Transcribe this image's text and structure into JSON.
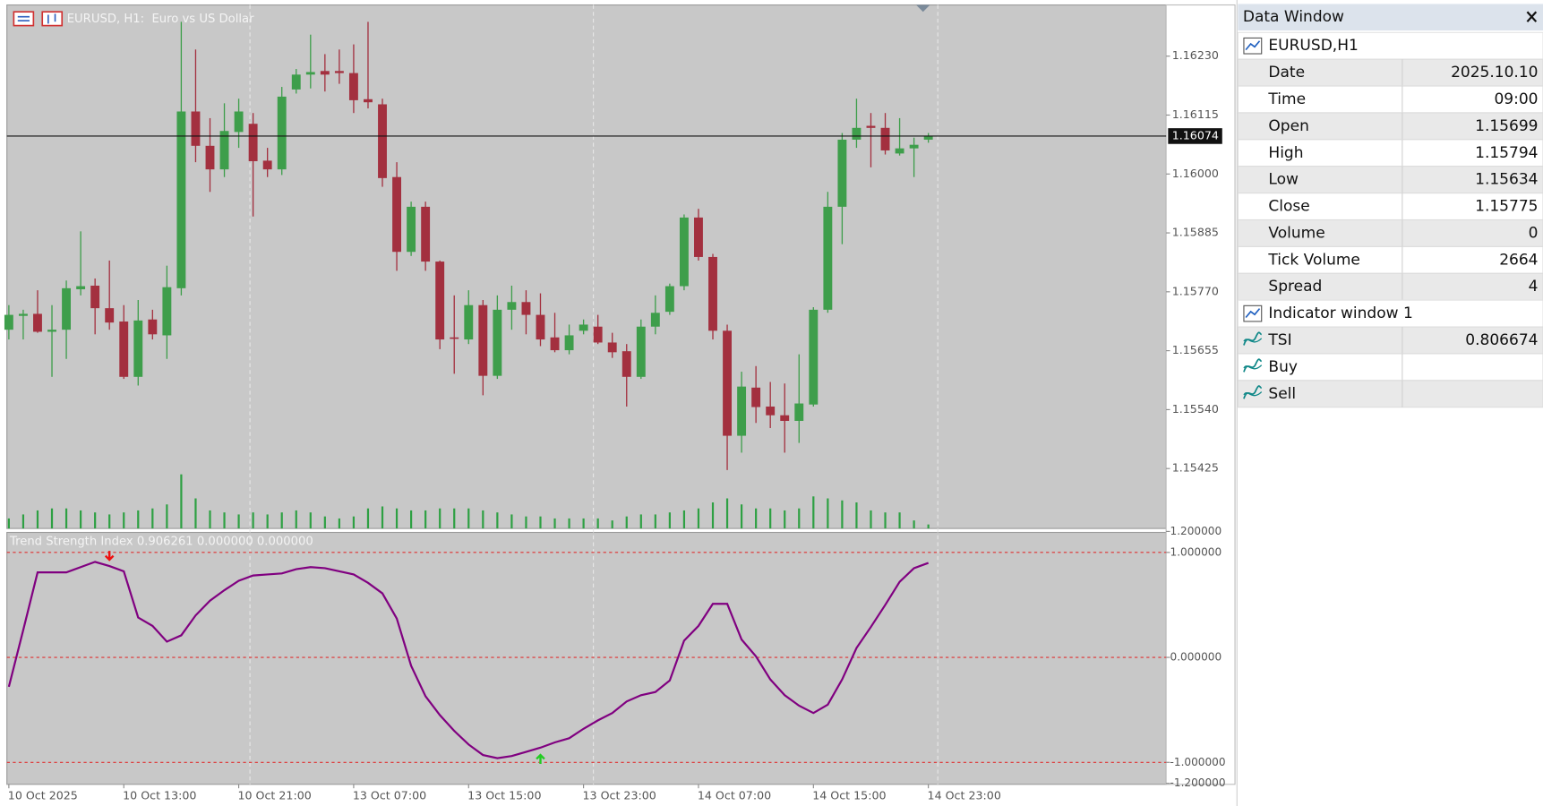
{
  "header": {
    "symbol_title": "EURUSD, H1:  Euro vs US Dollar"
  },
  "chart_data": [
    {
      "type": "candlestick",
      "categories": [
        "10 Oct 2025",
        null,
        null,
        null,
        null,
        null,
        null,
        null,
        "10 Oct 13:00",
        null,
        null,
        null,
        null,
        null,
        null,
        null,
        "10 Oct 21:00",
        null,
        null,
        null,
        null,
        null,
        null,
        null,
        "13 Oct 07:00",
        null,
        null,
        null,
        null,
        null,
        null,
        null,
        "13 Oct 15:00",
        null,
        null,
        null,
        null,
        null,
        null,
        null,
        "13 Oct 23:00",
        null,
        null,
        null,
        null,
        null,
        null,
        null,
        "14 Oct 07:00",
        null,
        null,
        null,
        null,
        null,
        null,
        null,
        "14 Oct 15:00",
        null,
        null,
        null,
        null,
        null,
        null,
        null,
        "14 Oct 23:00"
      ],
      "open": [
        1.15696,
        1.15723,
        1.15727,
        1.15692,
        1.15696,
        1.15775,
        1.15782,
        1.15738,
        1.15712,
        1.15604,
        1.15716,
        1.15685,
        1.15777,
        1.16122,
        1.16055,
        1.16009,
        1.16082,
        1.16098,
        1.16026,
        1.16009,
        1.16165,
        1.16194,
        1.16201,
        1.16201,
        1.16197,
        1.16146,
        1.16136,
        1.15994,
        1.15848,
        1.15936,
        1.15829,
        1.15681,
        1.15677,
        1.15744,
        1.15606,
        1.15735,
        1.1575,
        1.15725,
        1.15681,
        1.15656,
        1.15694,
        1.15702,
        1.15671,
        1.15654,
        1.15604,
        1.15702,
        1.15731,
        1.15781,
        1.15915,
        1.15838,
        1.15694,
        1.15489,
        1.15583,
        1.15546,
        1.15529,
        1.15518,
        1.1555,
        1.15735,
        1.15936,
        1.16067,
        1.16094,
        1.1609,
        1.1604,
        1.1605,
        1.16067
      ],
      "high": [
        1.15744,
        1.15735,
        1.15773,
        1.15744,
        1.15792,
        1.15888,
        1.15796,
        1.15831,
        1.15744,
        1.15754,
        1.15735,
        1.15821,
        1.16297,
        1.16243,
        1.16109,
        1.16138,
        1.16147,
        1.16119,
        1.16051,
        1.1617,
        1.16205,
        1.16272,
        1.16234,
        1.16243,
        1.16253,
        1.16297,
        1.16147,
        1.16023,
        1.15946,
        1.15946,
        1.15831,
        1.15763,
        1.15773,
        1.15754,
        1.15763,
        1.15782,
        1.15773,
        1.15767,
        1.15729,
        1.15706,
        1.15716,
        1.15725,
        1.1569,
        1.15668,
        1.15716,
        1.15763,
        1.15786,
        1.15921,
        1.15932,
        1.15844,
        1.15706,
        1.15614,
        1.15625,
        1.15594,
        1.15591,
        1.15648,
        1.1574,
        1.15965,
        1.1608,
        1.16147,
        1.16119,
        1.16119,
        1.16109,
        1.16071,
        1.1608
      ],
      "low": [
        1.15677,
        1.15677,
        1.1569,
        1.15604,
        1.15639,
        1.15763,
        1.15687,
        1.15696,
        1.156,
        1.15587,
        1.15677,
        1.15639,
        1.15763,
        1.16023,
        1.15965,
        1.15994,
        1.16051,
        1.15917,
        1.15994,
        1.15998,
        1.16157,
        1.16167,
        1.16161,
        1.16176,
        1.16119,
        1.16128,
        1.15975,
        1.15811,
        1.1584,
        1.15811,
        1.15658,
        1.1561,
        1.15668,
        1.15568,
        1.156,
        1.15696,
        1.15687,
        1.15664,
        1.15652,
        1.15648,
        1.15687,
        1.15668,
        1.15641,
        1.15546,
        1.156,
        1.15687,
        1.15725,
        1.15773,
        1.15831,
        1.15677,
        1.15422,
        1.15456,
        1.15514,
        1.15504,
        1.15456,
        1.15475,
        1.15546,
        1.15729,
        1.15863,
        1.16051,
        1.16013,
        1.16038,
        1.16036,
        1.15994,
        1.16061
      ],
      "close": [
        1.15725,
        1.15727,
        1.15692,
        1.15696,
        1.15777,
        1.15781,
        1.15738,
        1.1571,
        1.15604,
        1.15714,
        1.15687,
        1.15779,
        1.16122,
        1.16055,
        1.16009,
        1.16084,
        1.16122,
        1.16025,
        1.16009,
        1.16151,
        1.16194,
        1.16199,
        1.16194,
        1.16197,
        1.16144,
        1.1614,
        1.15992,
        1.15848,
        1.15936,
        1.15829,
        1.15677,
        1.15679,
        1.15744,
        1.15606,
        1.15735,
        1.1575,
        1.15725,
        1.15677,
        1.15656,
        1.15685,
        1.15706,
        1.15671,
        1.15652,
        1.15604,
        1.15702,
        1.15729,
        1.15781,
        1.15915,
        1.15838,
        1.15694,
        1.15489,
        1.15585,
        1.15545,
        1.15529,
        1.15518,
        1.15552,
        1.15735,
        1.15936,
        1.16067,
        1.1609,
        1.1609,
        1.16046,
        1.1605,
        1.16057,
        1.16074
      ],
      "volumes": [
        1000,
        1400,
        1800,
        2000,
        2000,
        1800,
        1600,
        1400,
        1600,
        1800,
        2000,
        2400,
        5400,
        3000,
        1800,
        1600,
        1400,
        1600,
        1400,
        1600,
        1800,
        1600,
        1200,
        1000,
        1200,
        2000,
        2200,
        2000,
        1800,
        1800,
        2000,
        2000,
        2000,
        1800,
        1600,
        1400,
        1200,
        1200,
        1000,
        1000,
        1000,
        1000,
        800,
        1200,
        1400,
        1400,
        1600,
        1800,
        2000,
        2600,
        3000,
        2400,
        2000,
        2000,
        1800,
        2000,
        3200,
        3000,
        2800,
        2600,
        1800,
        1600,
        1600,
        800,
        400
      ],
      "up_color": "#3e9e4b",
      "down_color": "#a3303f",
      "volume_color": "#2ea043",
      "current_price": 1.16074,
      "ylim": [
        1.15308,
        1.1633
      ],
      "yticks": [
        {
          "value": 1.1623,
          "label": "1.16230"
        },
        {
          "value": 1.16115,
          "label": "1.16115"
        },
        {
          "value": 1.16,
          "label": "1.16000"
        },
        {
          "value": 1.15885,
          "label": "1.15885"
        },
        {
          "value": 1.1577,
          "label": "1.15770"
        },
        {
          "value": 1.15655,
          "label": "1.15655"
        },
        {
          "value": 1.1554,
          "label": "1.15540"
        },
        {
          "value": 1.15425,
          "label": "1.15425"
        }
      ]
    },
    {
      "type": "line",
      "title": "Trend Strength Index 0.906261 0.000000 0.000000",
      "ylim": [
        -1.2,
        1.2
      ],
      "yticks": [
        {
          "value": 1.2,
          "label": "1.200000"
        },
        {
          "value": 1,
          "label": "1.000000"
        },
        {
          "value": 0,
          "label": "0.000000"
        },
        {
          "value": -1,
          "label": "-1.000000"
        },
        {
          "value": -1.2,
          "label": "-1.200000"
        }
      ],
      "levels": [
        1,
        0,
        -1
      ],
      "level_color": "#e03030",
      "series": [
        {
          "color": "#800080",
          "values": [
            -0.28,
            0.26,
            0.81,
            0.81,
            0.81,
            0.86,
            0.91,
            0.87,
            0.82,
            0.38,
            0.3,
            0.15,
            0.21,
            0.4,
            0.54,
            0.64,
            0.73,
            0.78,
            0.79,
            0.8,
            0.84,
            0.86,
            0.85,
            0.82,
            0.79,
            0.71,
            0.61,
            0.37,
            -0.08,
            -0.37,
            -0.55,
            -0.7,
            -0.83,
            -0.93,
            -0.96,
            -0.94,
            -0.9,
            -0.86,
            -0.81,
            -0.77,
            -0.68,
            -0.6,
            -0.53,
            -0.42,
            -0.36,
            -0.33,
            -0.22,
            0.16,
            0.3,
            0.51,
            0.51,
            0.17,
            0.01,
            -0.21,
            -0.36,
            -0.46,
            -0.53,
            -0.45,
            -0.21,
            0.09,
            0.29,
            0.5,
            0.72,
            0.85,
            0.9
          ]
        },
        {
          "color": "#22cc22",
          "marker": "up",
          "values": [
            null,
            null,
            null,
            null,
            null,
            null,
            null,
            null,
            null,
            null,
            null,
            null,
            null,
            null,
            null,
            null,
            null,
            null,
            null,
            null,
            null,
            null,
            null,
            null,
            null,
            null,
            null,
            null,
            null,
            null,
            null,
            null,
            null,
            null,
            null,
            null,
            null,
            -0.93,
            null,
            null,
            null,
            null,
            null,
            null,
            null,
            null,
            null,
            null,
            null,
            null,
            null,
            null,
            null,
            null,
            null,
            null,
            null,
            null,
            null,
            null,
            null,
            null,
            null,
            null,
            null
          ]
        },
        {
          "color": "#ee1111",
          "marker": "down",
          "values": [
            null,
            null,
            null,
            null,
            null,
            null,
            null,
            0.93,
            null,
            null,
            null,
            null,
            null,
            null,
            null,
            null,
            null,
            null,
            null,
            null,
            null,
            null,
            null,
            null,
            null,
            null,
            null,
            null,
            null,
            null,
            null,
            null,
            null,
            null,
            null,
            null,
            null,
            null,
            null,
            null,
            null,
            null,
            null,
            null,
            null,
            null,
            null,
            null,
            null,
            null,
            null,
            null,
            null,
            null,
            null,
            null,
            null,
            null,
            null,
            null,
            null,
            null,
            null,
            null,
            null
          ]
        }
      ]
    }
  ],
  "data_window": {
    "title": "Data Window",
    "symbol": "EURUSD,H1",
    "rows": [
      [
        "Date",
        "2025.10.10"
      ],
      [
        "Time",
        "09:00"
      ],
      [
        "Open",
        1.15699
      ],
      [
        "High",
        1.15794
      ],
      [
        "Low",
        1.15634
      ],
      [
        "Close",
        1.15775
      ],
      [
        "Volume",
        0
      ],
      [
        "Tick Volume",
        2664
      ],
      [
        "Spread",
        4
      ]
    ],
    "indicator": "Indicator window 1",
    "indicator_rows": [
      [
        "TSI",
        0.806674
      ],
      [
        "Buy"
      ],
      [
        "Sell"
      ]
    ]
  }
}
